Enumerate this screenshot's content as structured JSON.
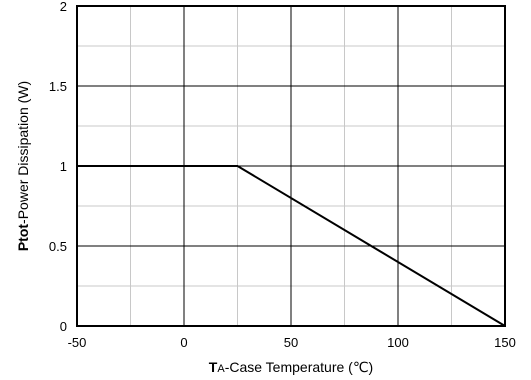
{
  "chart_data": {
    "type": "line",
    "xlabel_prefix": "T",
    "xlabel_subscript": "A",
    "xlabel_rest": "-Case Temperature (℃)",
    "ylabel_bold": "Ptot",
    "ylabel_rest": "-Power Dissipation (W)",
    "xlim": [
      -50,
      150
    ],
    "ylim": [
      0,
      2
    ],
    "x_ticks": [
      "-50",
      "0",
      "50",
      "100",
      "150"
    ],
    "y_ticks": [
      "0",
      "0.5",
      "1",
      "1.5",
      "2"
    ],
    "x_tick_values": [
      -50,
      0,
      50,
      100,
      150
    ],
    "y_tick_values": [
      0,
      0.5,
      1,
      1.5,
      2
    ],
    "x_minor_step": 25,
    "y_minor_step": 0.25,
    "grid": true,
    "series": [
      {
        "x": [
          -50,
          25,
          150
        ],
        "y": [
          1,
          1,
          0
        ]
      }
    ]
  }
}
